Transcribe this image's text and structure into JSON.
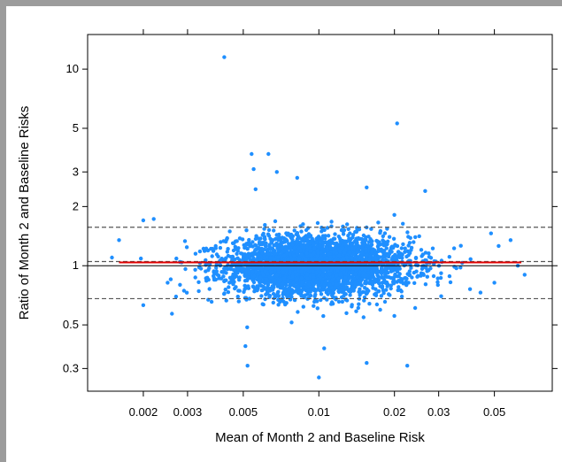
{
  "chart_data": {
    "type": "scatter",
    "title": "",
    "xlabel": "Mean of Month 2 and Baseline Risk",
    "ylabel": "Ratio of Month 2 and Baseline Risks",
    "x_scale": "log",
    "y_scale": "log",
    "xlim": [
      0.0012,
      0.085
    ],
    "ylim": [
      0.23,
      15
    ],
    "x_ticks": [
      {
        "value": 0.002,
        "label": "0.002"
      },
      {
        "value": 0.003,
        "label": "0.003"
      },
      {
        "value": 0.005,
        "label": "0.005"
      },
      {
        "value": 0.01,
        "label": "0.01"
      },
      {
        "value": 0.02,
        "label": "0.02"
      },
      {
        "value": 0.03,
        "label": "0.03"
      },
      {
        "value": 0.05,
        "label": "0.05"
      }
    ],
    "y_ticks": [
      {
        "value": 0.3,
        "label": "0.3"
      },
      {
        "value": 0.5,
        "label": "0.5"
      },
      {
        "value": 1,
        "label": "1"
      },
      {
        "value": 2,
        "label": "2"
      },
      {
        "value": 3,
        "label": "3"
      },
      {
        "value": 5,
        "label": "5"
      },
      {
        "value": 10,
        "label": "10"
      }
    ],
    "reference_lines": {
      "solid_y": 1.0,
      "dashed_upper": 1.57,
      "dashed_mean": 1.05,
      "dashed_lower": 0.68,
      "trend_line": {
        "x_start": 0.0016,
        "x_end": 0.064,
        "y": 1.04
      }
    },
    "point_cloud": {
      "count": 3500,
      "center_x": 0.0095,
      "center_y": 1.05,
      "log10_sd_x": 0.17,
      "log10_sd_y": 0.075
    },
    "highlighted_points": [
      {
        "x": 0.0042,
        "y": 11.5
      },
      {
        "x": 0.0205,
        "y": 5.3
      },
      {
        "x": 0.0054,
        "y": 3.7
      },
      {
        "x": 0.0063,
        "y": 3.7
      },
      {
        "x": 0.0055,
        "y": 3.1
      },
      {
        "x": 0.0068,
        "y": 3.0
      },
      {
        "x": 0.0082,
        "y": 2.8
      },
      {
        "x": 0.0265,
        "y": 2.4
      },
      {
        "x": 0.0155,
        "y": 2.5
      },
      {
        "x": 0.0056,
        "y": 2.45
      },
      {
        "x": 0.002,
        "y": 1.7
      },
      {
        "x": 0.0022,
        "y": 1.73
      },
      {
        "x": 0.0016,
        "y": 1.35
      },
      {
        "x": 0.0015,
        "y": 1.1
      },
      {
        "x": 0.0025,
        "y": 0.82
      },
      {
        "x": 0.0028,
        "y": 0.8
      },
      {
        "x": 0.0026,
        "y": 0.57
      },
      {
        "x": 0.002,
        "y": 0.63
      },
      {
        "x": 0.0051,
        "y": 0.39
      },
      {
        "x": 0.0052,
        "y": 0.31
      },
      {
        "x": 0.01,
        "y": 0.27
      },
      {
        "x": 0.0225,
        "y": 0.31
      },
      {
        "x": 0.0155,
        "y": 0.32
      },
      {
        "x": 0.0105,
        "y": 0.38
      },
      {
        "x": 0.058,
        "y": 1.35
      },
      {
        "x": 0.062,
        "y": 1.0
      },
      {
        "x": 0.066,
        "y": 0.9
      },
      {
        "x": 0.052,
        "y": 1.26
      },
      {
        "x": 0.05,
        "y": 0.82
      },
      {
        "x": 0.044,
        "y": 0.73
      },
      {
        "x": 0.04,
        "y": 0.76
      }
    ],
    "colors": {
      "points": "#1f8fff",
      "trend": "#e00000",
      "dashed": "#555555",
      "solid": "#000000",
      "frame_border": "#9c9c9c"
    },
    "grid": false,
    "legend": "none"
  }
}
